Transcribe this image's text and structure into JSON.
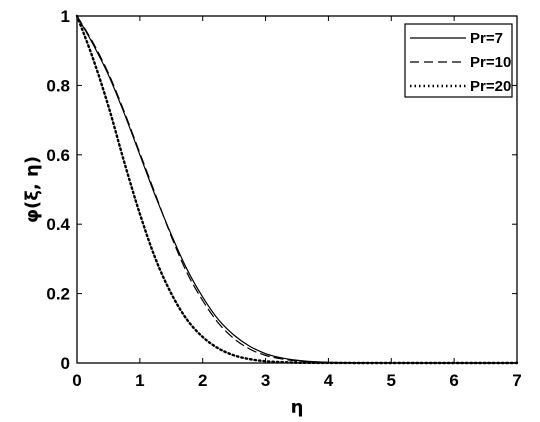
{
  "chart_data": {
    "type": "line",
    "xlabel": "η",
    "ylabel": "φ(ξ, η)",
    "xlim": [
      0,
      7
    ],
    "ylim": [
      0,
      1
    ],
    "xticks": [
      "0",
      "1",
      "2",
      "3",
      "4",
      "5",
      "6",
      "7"
    ],
    "yticks": [
      "0",
      "0.2",
      "0.4",
      "0.6",
      "0.8",
      "1"
    ],
    "grid": false,
    "legend_position": "top-right",
    "x": [
      0,
      0.25,
      0.5,
      0.75,
      1,
      1.25,
      1.5,
      1.75,
      2,
      2.25,
      2.5,
      2.75,
      3,
      3.25,
      3.5,
      3.75,
      4,
      4.5,
      5,
      5.5,
      6,
      6.5,
      7
    ],
    "series": [
      {
        "name": "Pr=7",
        "style": "solid",
        "values": [
          1.0,
          0.92,
          0.83,
          0.72,
          0.6,
          0.48,
          0.37,
          0.27,
          0.19,
          0.125,
          0.08,
          0.048,
          0.027,
          0.015,
          0.008,
          0.004,
          0.002,
          0.0008,
          0.0002,
          0.0001,
          0.0,
          0.0,
          0.0
        ]
      },
      {
        "name": "Pr=10",
        "style": "dashed",
        "values": [
          1.0,
          0.925,
          0.835,
          0.725,
          0.605,
          0.485,
          0.365,
          0.26,
          0.18,
          0.115,
          0.07,
          0.04,
          0.022,
          0.012,
          0.006,
          0.003,
          0.0015,
          0.0005,
          0.0001,
          0.0,
          0.0,
          0.0,
          0.0
        ]
      },
      {
        "name": "Pr=20",
        "style": "dotted",
        "values": [
          1.0,
          0.88,
          0.74,
          0.58,
          0.43,
          0.3,
          0.2,
          0.125,
          0.075,
          0.042,
          0.022,
          0.011,
          0.005,
          0.0025,
          0.001,
          0.0005,
          0.0002,
          0.0,
          0.0,
          0.0,
          0.0,
          0.0,
          0.0
        ]
      }
    ]
  }
}
